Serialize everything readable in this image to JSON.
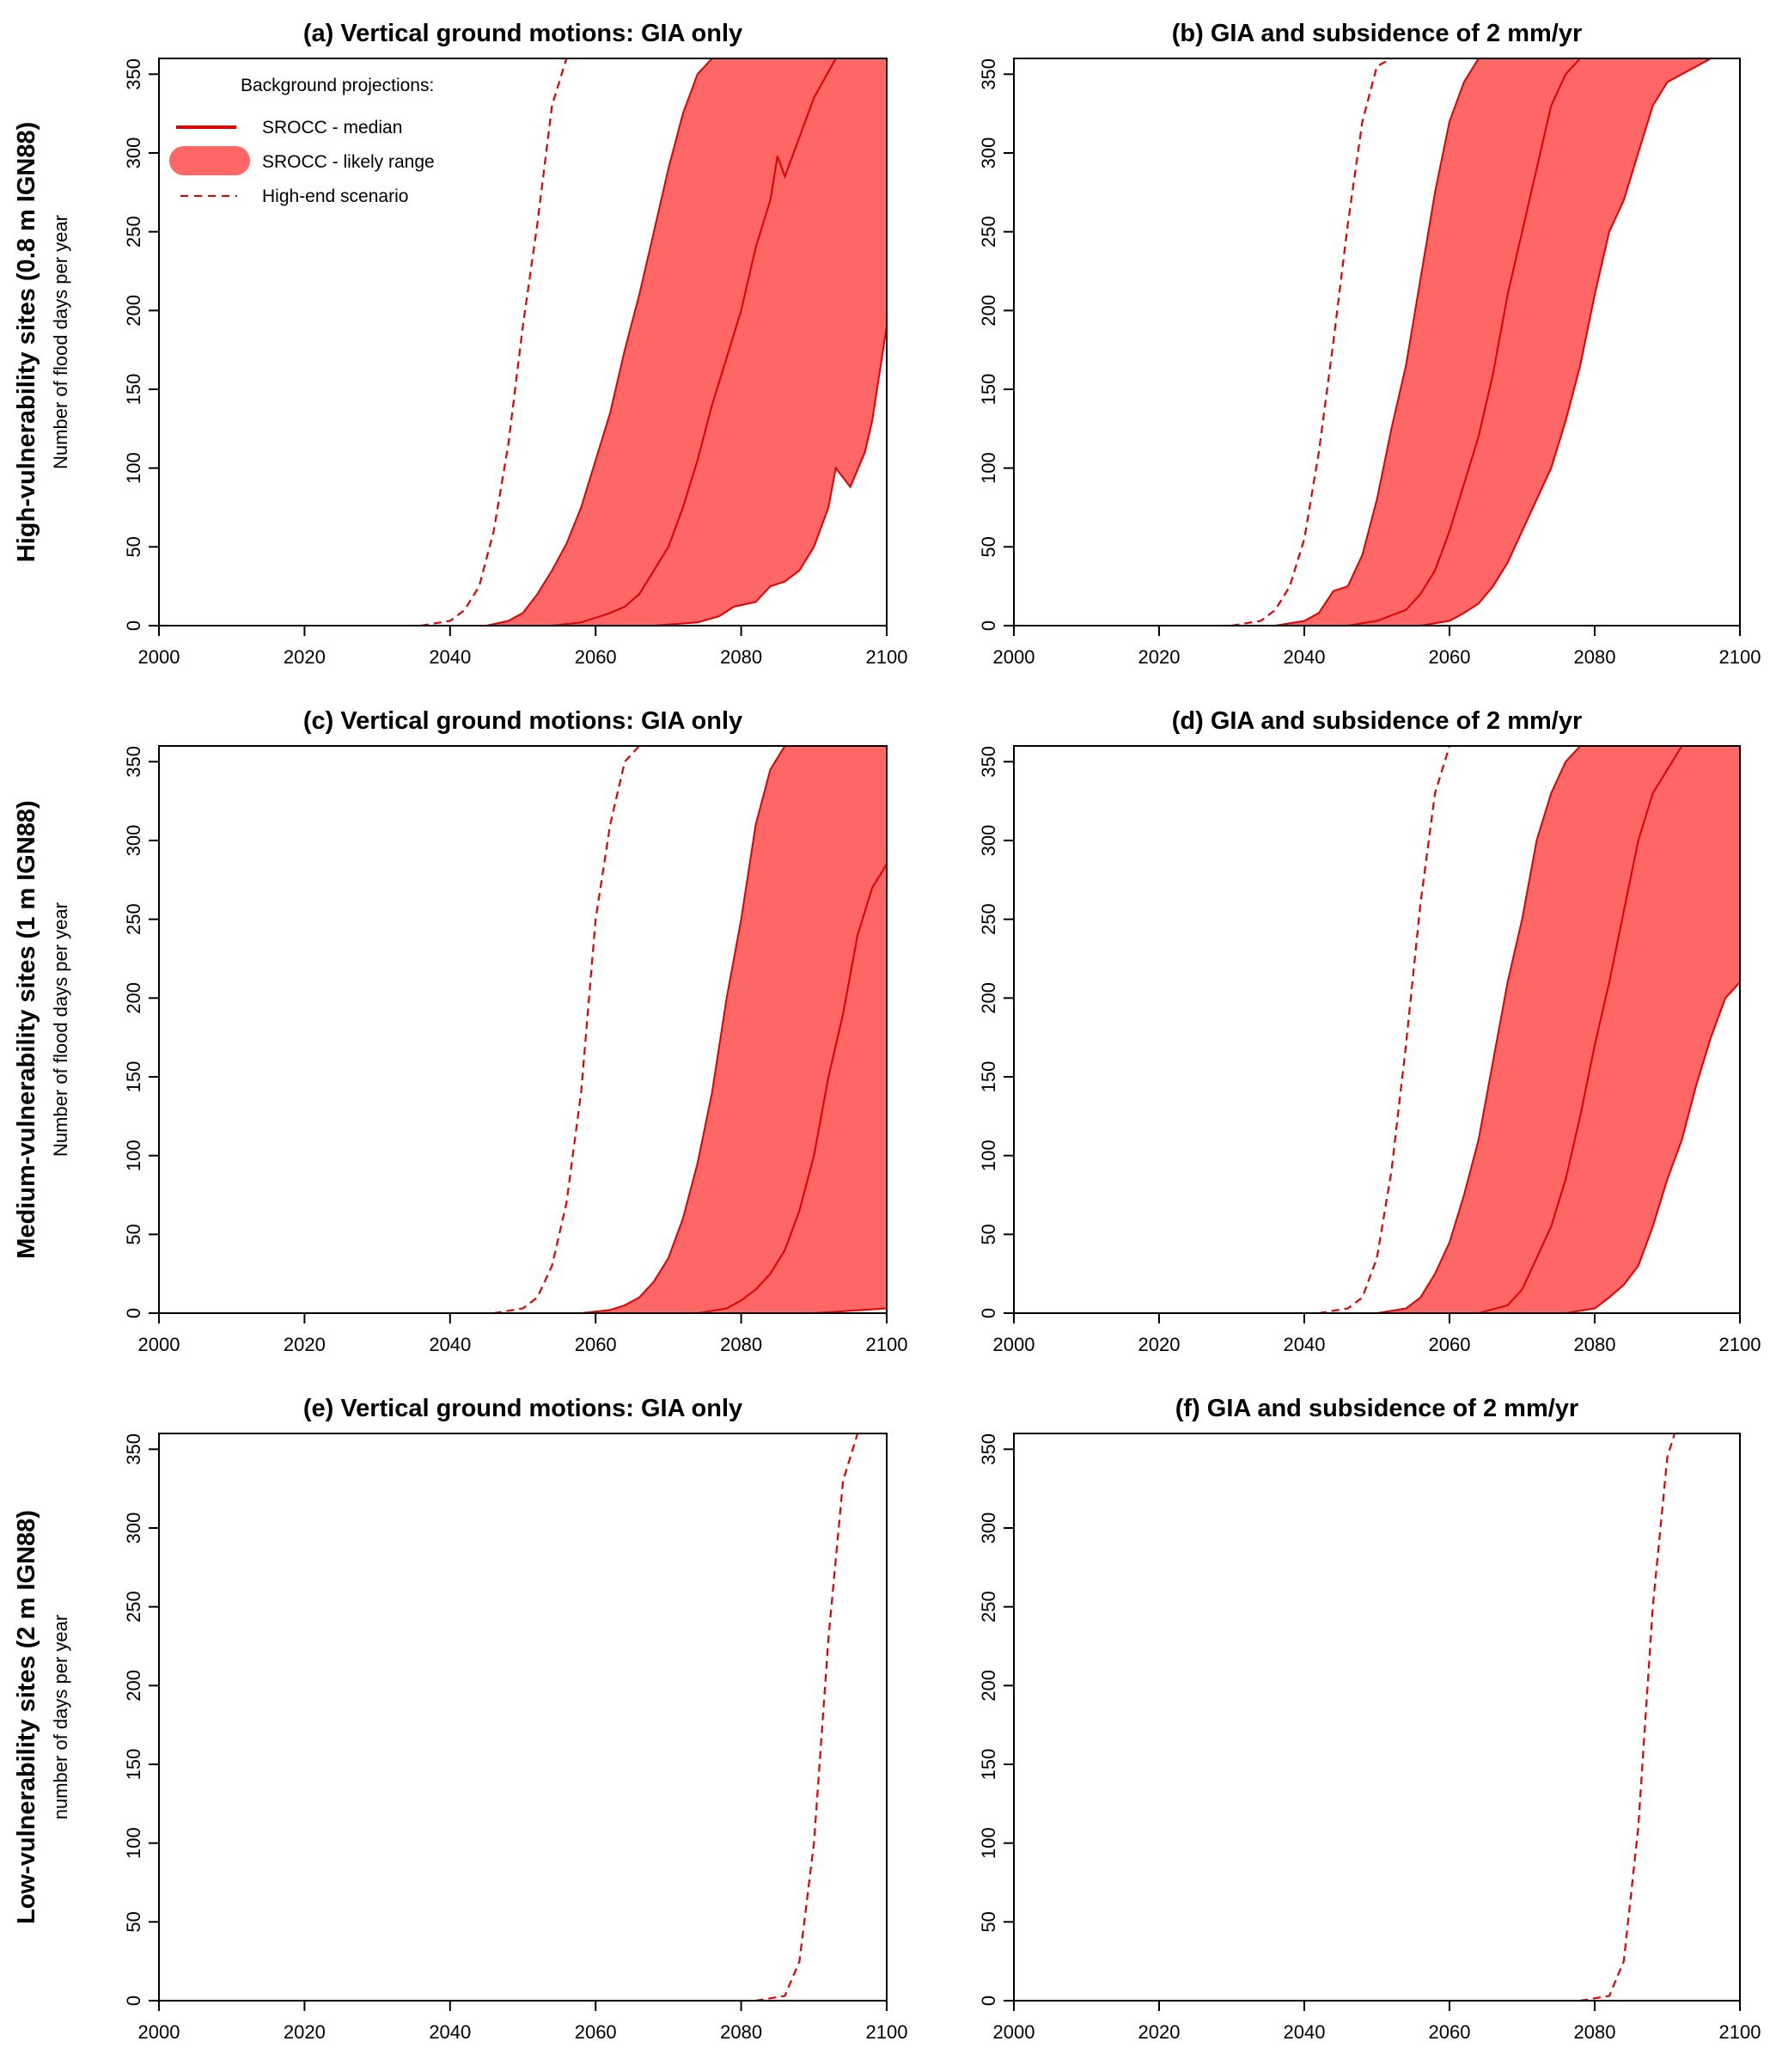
{
  "figure": {
    "rows": [
      {
        "label": "High-vulnerability sites (0.8 m IGN88)",
        "sublabel": "Number of flood days per year"
      },
      {
        "label": "Medium-vulnerability sites (1 m IGN88)",
        "sublabel": "Number of flood days per year"
      },
      {
        "label": "Low-vulnerability sites (2 m IGN88)",
        "sublabel": "number of days per year"
      }
    ],
    "legend": {
      "title": "Background projections:",
      "median": "SROCC - median",
      "likely": "SROCC - likely range",
      "highend": "High-end scenario"
    },
    "colors": {
      "line": "#e00000",
      "fill": "#ff6666",
      "axis": "#000000"
    }
  },
  "chart_data": [
    {
      "id": "a",
      "type": "area",
      "title": "(a) Vertical ground motions: GIA only",
      "xlim": [
        2000,
        2100
      ],
      "ylim": [
        0,
        360
      ],
      "xticks": [
        2000,
        2020,
        2040,
        2060,
        2080,
        2100
      ],
      "yticks": [
        0,
        50,
        100,
        150,
        200,
        250,
        300,
        350
      ],
      "ylabel": "Number of flood days per year",
      "series": {
        "upper": [
          [
            2045,
            0
          ],
          [
            2048,
            3
          ],
          [
            2050,
            8
          ],
          [
            2052,
            20
          ],
          [
            2054,
            35
          ],
          [
            2056,
            52
          ],
          [
            2058,
            75
          ],
          [
            2060,
            105
          ],
          [
            2062,
            135
          ],
          [
            2064,
            175
          ],
          [
            2066,
            210
          ],
          [
            2068,
            250
          ],
          [
            2070,
            290
          ],
          [
            2072,
            325
          ],
          [
            2074,
            350
          ],
          [
            2076,
            360
          ]
        ],
        "median": [
          [
            2054,
            0
          ],
          [
            2058,
            2
          ],
          [
            2062,
            8
          ],
          [
            2064,
            12
          ],
          [
            2066,
            20
          ],
          [
            2068,
            35
          ],
          [
            2070,
            50
          ],
          [
            2072,
            75
          ],
          [
            2074,
            105
          ],
          [
            2076,
            140
          ],
          [
            2078,
            170
          ],
          [
            2080,
            200
          ],
          [
            2082,
            240
          ],
          [
            2084,
            270
          ],
          [
            2085,
            298
          ],
          [
            2086,
            285
          ],
          [
            2088,
            310
          ],
          [
            2090,
            335
          ],
          [
            2093,
            360
          ]
        ],
        "lower": [
          [
            2068,
            0
          ],
          [
            2074,
            2
          ],
          [
            2077,
            6
          ],
          [
            2079,
            12
          ],
          [
            2082,
            15
          ],
          [
            2084,
            25
          ],
          [
            2086,
            28
          ],
          [
            2088,
            35
          ],
          [
            2090,
            50
          ],
          [
            2092,
            75
          ],
          [
            2093,
            100
          ],
          [
            2095,
            88
          ],
          [
            2097,
            110
          ],
          [
            2098,
            130
          ],
          [
            2100,
            190
          ]
        ],
        "highend": [
          [
            2036,
            0
          ],
          [
            2040,
            3
          ],
          [
            2042,
            10
          ],
          [
            2044,
            25
          ],
          [
            2046,
            60
          ],
          [
            2048,
            115
          ],
          [
            2050,
            190
          ],
          [
            2052,
            255
          ],
          [
            2054,
            330
          ],
          [
            2056,
            360
          ]
        ]
      },
      "show_legend": true
    },
    {
      "id": "b",
      "type": "area",
      "title": "(b) GIA and subsidence of 2 mm/yr",
      "xlim": [
        2000,
        2100
      ],
      "ylim": [
        0,
        360
      ],
      "xticks": [
        2000,
        2020,
        2040,
        2060,
        2080,
        2100
      ],
      "yticks": [
        0,
        50,
        100,
        150,
        200,
        250,
        300,
        350
      ],
      "ylabel": "",
      "series": {
        "upper": [
          [
            2036,
            0
          ],
          [
            2040,
            3
          ],
          [
            2042,
            8
          ],
          [
            2044,
            22
          ],
          [
            2046,
            25
          ],
          [
            2048,
            45
          ],
          [
            2050,
            80
          ],
          [
            2052,
            125
          ],
          [
            2054,
            165
          ],
          [
            2056,
            220
          ],
          [
            2058,
            275
          ],
          [
            2060,
            320
          ],
          [
            2062,
            345
          ],
          [
            2064,
            360
          ]
        ],
        "median": [
          [
            2046,
            0
          ],
          [
            2050,
            3
          ],
          [
            2054,
            10
          ],
          [
            2056,
            20
          ],
          [
            2058,
            35
          ],
          [
            2060,
            60
          ],
          [
            2062,
            90
          ],
          [
            2064,
            120
          ],
          [
            2066,
            160
          ],
          [
            2068,
            210
          ],
          [
            2070,
            250
          ],
          [
            2072,
            290
          ],
          [
            2074,
            330
          ],
          [
            2076,
            350
          ],
          [
            2078,
            360
          ]
        ],
        "lower": [
          [
            2056,
            0
          ],
          [
            2060,
            3
          ],
          [
            2062,
            8
          ],
          [
            2064,
            14
          ],
          [
            2066,
            25
          ],
          [
            2068,
            40
          ],
          [
            2070,
            60
          ],
          [
            2072,
            80
          ],
          [
            2074,
            100
          ],
          [
            2076,
            130
          ],
          [
            2078,
            165
          ],
          [
            2080,
            210
          ],
          [
            2082,
            250
          ],
          [
            2084,
            270
          ],
          [
            2086,
            300
          ],
          [
            2088,
            330
          ],
          [
            2090,
            345
          ],
          [
            2094,
            355
          ],
          [
            2096,
            360
          ]
        ],
        "highend": [
          [
            2030,
            0
          ],
          [
            2034,
            3
          ],
          [
            2036,
            10
          ],
          [
            2038,
            25
          ],
          [
            2040,
            55
          ],
          [
            2042,
            110
          ],
          [
            2044,
            180
          ],
          [
            2046,
            255
          ],
          [
            2048,
            320
          ],
          [
            2050,
            355
          ],
          [
            2052,
            360
          ]
        ]
      },
      "show_legend": false
    },
    {
      "id": "c",
      "type": "area",
      "title": "(c) Vertical ground motions: GIA only",
      "xlim": [
        2000,
        2100
      ],
      "ylim": [
        0,
        360
      ],
      "xticks": [
        2000,
        2020,
        2040,
        2060,
        2080,
        2100
      ],
      "yticks": [
        0,
        50,
        100,
        150,
        200,
        250,
        300,
        350
      ],
      "ylabel": "Number of flood days per year",
      "series": {
        "upper": [
          [
            2058,
            0
          ],
          [
            2062,
            2
          ],
          [
            2064,
            5
          ],
          [
            2066,
            10
          ],
          [
            2068,
            20
          ],
          [
            2070,
            35
          ],
          [
            2072,
            60
          ],
          [
            2074,
            95
          ],
          [
            2076,
            140
          ],
          [
            2078,
            200
          ],
          [
            2080,
            250
          ],
          [
            2082,
            310
          ],
          [
            2084,
            345
          ],
          [
            2086,
            360
          ]
        ],
        "median": [
          [
            2074,
            0
          ],
          [
            2078,
            3
          ],
          [
            2080,
            8
          ],
          [
            2082,
            15
          ],
          [
            2084,
            25
          ],
          [
            2086,
            40
          ],
          [
            2088,
            65
          ],
          [
            2090,
            100
          ],
          [
            2092,
            150
          ],
          [
            2094,
            190
          ],
          [
            2096,
            240
          ],
          [
            2098,
            270
          ],
          [
            2100,
            285
          ]
        ],
        "lower": [
          [
            2090,
            0
          ],
          [
            2100,
            3
          ]
        ],
        "highend": [
          [
            2046,
            0
          ],
          [
            2050,
            3
          ],
          [
            2052,
            10
          ],
          [
            2054,
            30
          ],
          [
            2056,
            70
          ],
          [
            2058,
            140
          ],
          [
            2060,
            250
          ],
          [
            2062,
            310
          ],
          [
            2064,
            350
          ],
          [
            2066,
            360
          ]
        ]
      },
      "show_legend": false
    },
    {
      "id": "d",
      "type": "area",
      "title": "(d) GIA and subsidence of 2 mm/yr",
      "xlim": [
        2000,
        2100
      ],
      "ylim": [
        0,
        360
      ],
      "xticks": [
        2000,
        2020,
        2040,
        2060,
        2080,
        2100
      ],
      "yticks": [
        0,
        50,
        100,
        150,
        200,
        250,
        300,
        350
      ],
      "ylabel": "",
      "series": {
        "upper": [
          [
            2050,
            0
          ],
          [
            2054,
            3
          ],
          [
            2056,
            10
          ],
          [
            2058,
            25
          ],
          [
            2060,
            45
          ],
          [
            2062,
            75
          ],
          [
            2064,
            110
          ],
          [
            2066,
            160
          ],
          [
            2068,
            210
          ],
          [
            2070,
            250
          ],
          [
            2072,
            300
          ],
          [
            2074,
            330
          ],
          [
            2076,
            350
          ],
          [
            2078,
            360
          ]
        ],
        "median": [
          [
            2064,
            0
          ],
          [
            2068,
            5
          ],
          [
            2070,
            15
          ],
          [
            2072,
            35
          ],
          [
            2074,
            55
          ],
          [
            2076,
            85
          ],
          [
            2078,
            125
          ],
          [
            2080,
            170
          ],
          [
            2082,
            210
          ],
          [
            2084,
            255
          ],
          [
            2086,
            300
          ],
          [
            2088,
            330
          ],
          [
            2090,
            345
          ],
          [
            2092,
            360
          ]
        ],
        "lower": [
          [
            2076,
            0
          ],
          [
            2080,
            3
          ],
          [
            2082,
            10
          ],
          [
            2084,
            18
          ],
          [
            2086,
            30
          ],
          [
            2088,
            55
          ],
          [
            2090,
            85
          ],
          [
            2092,
            110
          ],
          [
            2094,
            145
          ],
          [
            2096,
            175
          ],
          [
            2098,
            200
          ],
          [
            2100,
            210
          ]
        ],
        "highend": [
          [
            2042,
            0
          ],
          [
            2046,
            3
          ],
          [
            2048,
            10
          ],
          [
            2050,
            35
          ],
          [
            2052,
            90
          ],
          [
            2054,
            170
          ],
          [
            2056,
            260
          ],
          [
            2058,
            330
          ],
          [
            2060,
            360
          ]
        ]
      },
      "show_legend": false
    },
    {
      "id": "e",
      "type": "line",
      "title": "(e) Vertical ground motions: GIA only",
      "xlim": [
        2000,
        2100
      ],
      "ylim": [
        0,
        360
      ],
      "xticks": [
        2000,
        2020,
        2040,
        2060,
        2080,
        2100
      ],
      "yticks": [
        0,
        50,
        100,
        150,
        200,
        250,
        300,
        350
      ],
      "ylabel": "number of days per year",
      "series": {
        "upper": [],
        "median": [],
        "lower": [],
        "highend": [
          [
            2082,
            0
          ],
          [
            2086,
            3
          ],
          [
            2088,
            25
          ],
          [
            2090,
            100
          ],
          [
            2092,
            230
          ],
          [
            2094,
            330
          ],
          [
            2096,
            360
          ]
        ]
      },
      "show_legend": false
    },
    {
      "id": "f",
      "type": "line",
      "title": "(f) GIA and subsidence of 2 mm/yr",
      "xlim": [
        2000,
        2100
      ],
      "ylim": [
        0,
        360
      ],
      "xticks": [
        2000,
        2020,
        2040,
        2060,
        2080,
        2100
      ],
      "yticks": [
        0,
        50,
        100,
        150,
        200,
        250,
        300,
        350
      ],
      "ylabel": "",
      "series": {
        "upper": [],
        "median": [],
        "lower": [],
        "highend": [
          [
            2078,
            0
          ],
          [
            2082,
            3
          ],
          [
            2084,
            25
          ],
          [
            2086,
            110
          ],
          [
            2088,
            250
          ],
          [
            2090,
            345
          ],
          [
            2091,
            360
          ]
        ]
      },
      "show_legend": false
    }
  ]
}
